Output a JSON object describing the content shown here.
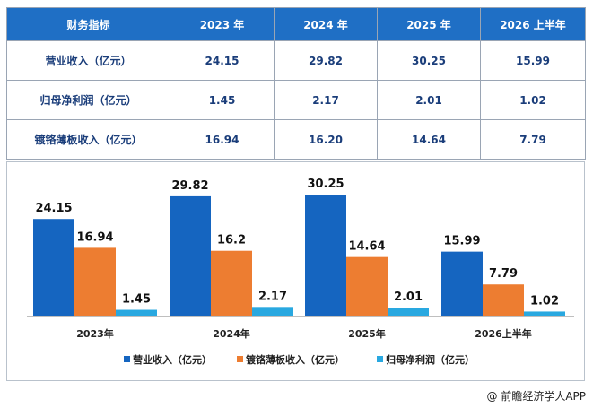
{
  "table": {
    "header": [
      "财务指标",
      "2023 年",
      "2024 年",
      "2025 年",
      "2026 上半年"
    ],
    "rows": [
      {
        "label": "营业收入（亿元）",
        "values": [
          "24.15",
          "29.82",
          "30.25",
          "15.99"
        ]
      },
      {
        "label": "归母净利润（亿元）",
        "values": [
          "1.45",
          "2.17",
          "2.01",
          "1.02"
        ]
      },
      {
        "label": "镀铬薄板收入（亿元）",
        "values": [
          "16.94",
          "16.20",
          "14.64",
          "7.79"
        ]
      }
    ]
  },
  "chart_data": {
    "type": "bar",
    "categories": [
      "2023年",
      "2024年",
      "2025年",
      "2026上半年"
    ],
    "series": [
      {
        "name": "营业收入（亿元）",
        "values": [
          24.15,
          29.82,
          30.25,
          15.99
        ],
        "labels": [
          "24.15",
          "29.82",
          "30.25",
          "15.99"
        ],
        "color": "#1565c0"
      },
      {
        "name": "镀铬薄板收入（亿元）",
        "values": [
          16.94,
          16.2,
          14.64,
          7.79
        ],
        "labels": [
          "16.94",
          "16.2",
          "14.64",
          "7.79"
        ],
        "color": "#ed7d31"
      },
      {
        "name": "归母净利润（亿元）",
        "values": [
          1.45,
          2.17,
          2.01,
          1.02
        ],
        "labels": [
          "1.45",
          "2.17",
          "2.01",
          "1.02"
        ],
        "color": "#29a8e0"
      }
    ],
    "ylim": [
      0,
      30.25
    ],
    "grid": false,
    "legend": "bottom"
  },
  "source": "@ 前瞻经济学人APP"
}
